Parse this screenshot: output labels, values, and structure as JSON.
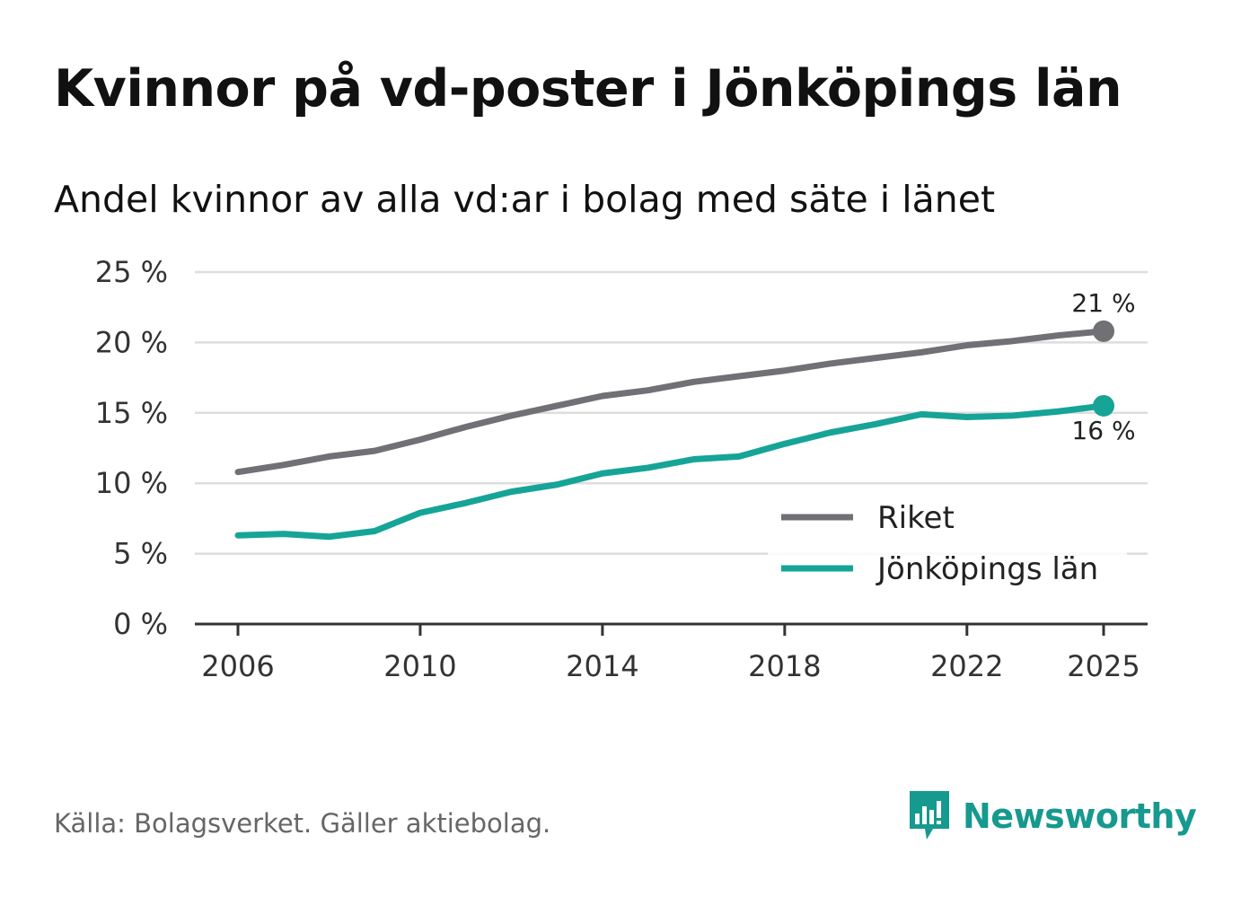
{
  "header": {
    "title": "Kvinnor på vd-poster i Jönköpings län",
    "subtitle": "Andel kvinnor av alla vd:ar i bolag med säte i länet"
  },
  "footer": {
    "source": "Källa: Bolagsverket. Gäller aktiebolag.",
    "brand": "Newsworthy"
  },
  "colors": {
    "riket": "#707075",
    "lan": "#16a497",
    "grid": "#dddddd",
    "axis": "#333333",
    "brand": "#16998e"
  },
  "chart_data": {
    "type": "line",
    "title": "Kvinnor på vd-poster i Jönköpings län",
    "subtitle": "Andel kvinnor av alla vd:ar i bolag med säte i länet",
    "xlabel": "",
    "ylabel": "",
    "x": [
      2006,
      2007,
      2008,
      2009,
      2010,
      2011,
      2012,
      2013,
      2014,
      2015,
      2016,
      2017,
      2018,
      2019,
      2020,
      2021,
      2022,
      2023,
      2024,
      2025
    ],
    "xticks": [
      2006,
      2010,
      2014,
      2018,
      2022,
      2025
    ],
    "xlim": [
      2006,
      2025
    ],
    "ylim": [
      0,
      25
    ],
    "yticks": [
      0,
      5,
      10,
      15,
      20,
      25
    ],
    "ytick_labels": [
      "0 %",
      "5 %",
      "10 %",
      "15 %",
      "20 %",
      "25 %"
    ],
    "grid": true,
    "legend_position": "bottom-right",
    "series": [
      {
        "name": "Riket",
        "values": [
          10.8,
          11.3,
          11.9,
          12.3,
          13.1,
          14.0,
          14.8,
          15.5,
          16.2,
          16.6,
          17.2,
          17.6,
          18.0,
          18.5,
          18.9,
          19.3,
          19.8,
          20.1,
          20.5,
          20.8
        ],
        "end_label": "21 %"
      },
      {
        "name": "Jönköpings län",
        "values": [
          6.3,
          6.4,
          6.2,
          6.6,
          7.9,
          8.6,
          9.4,
          9.9,
          10.7,
          11.1,
          11.7,
          11.9,
          12.8,
          13.6,
          14.2,
          14.9,
          14.7,
          14.8,
          15.1,
          15.5
        ],
        "end_label": "16 %"
      }
    ]
  }
}
